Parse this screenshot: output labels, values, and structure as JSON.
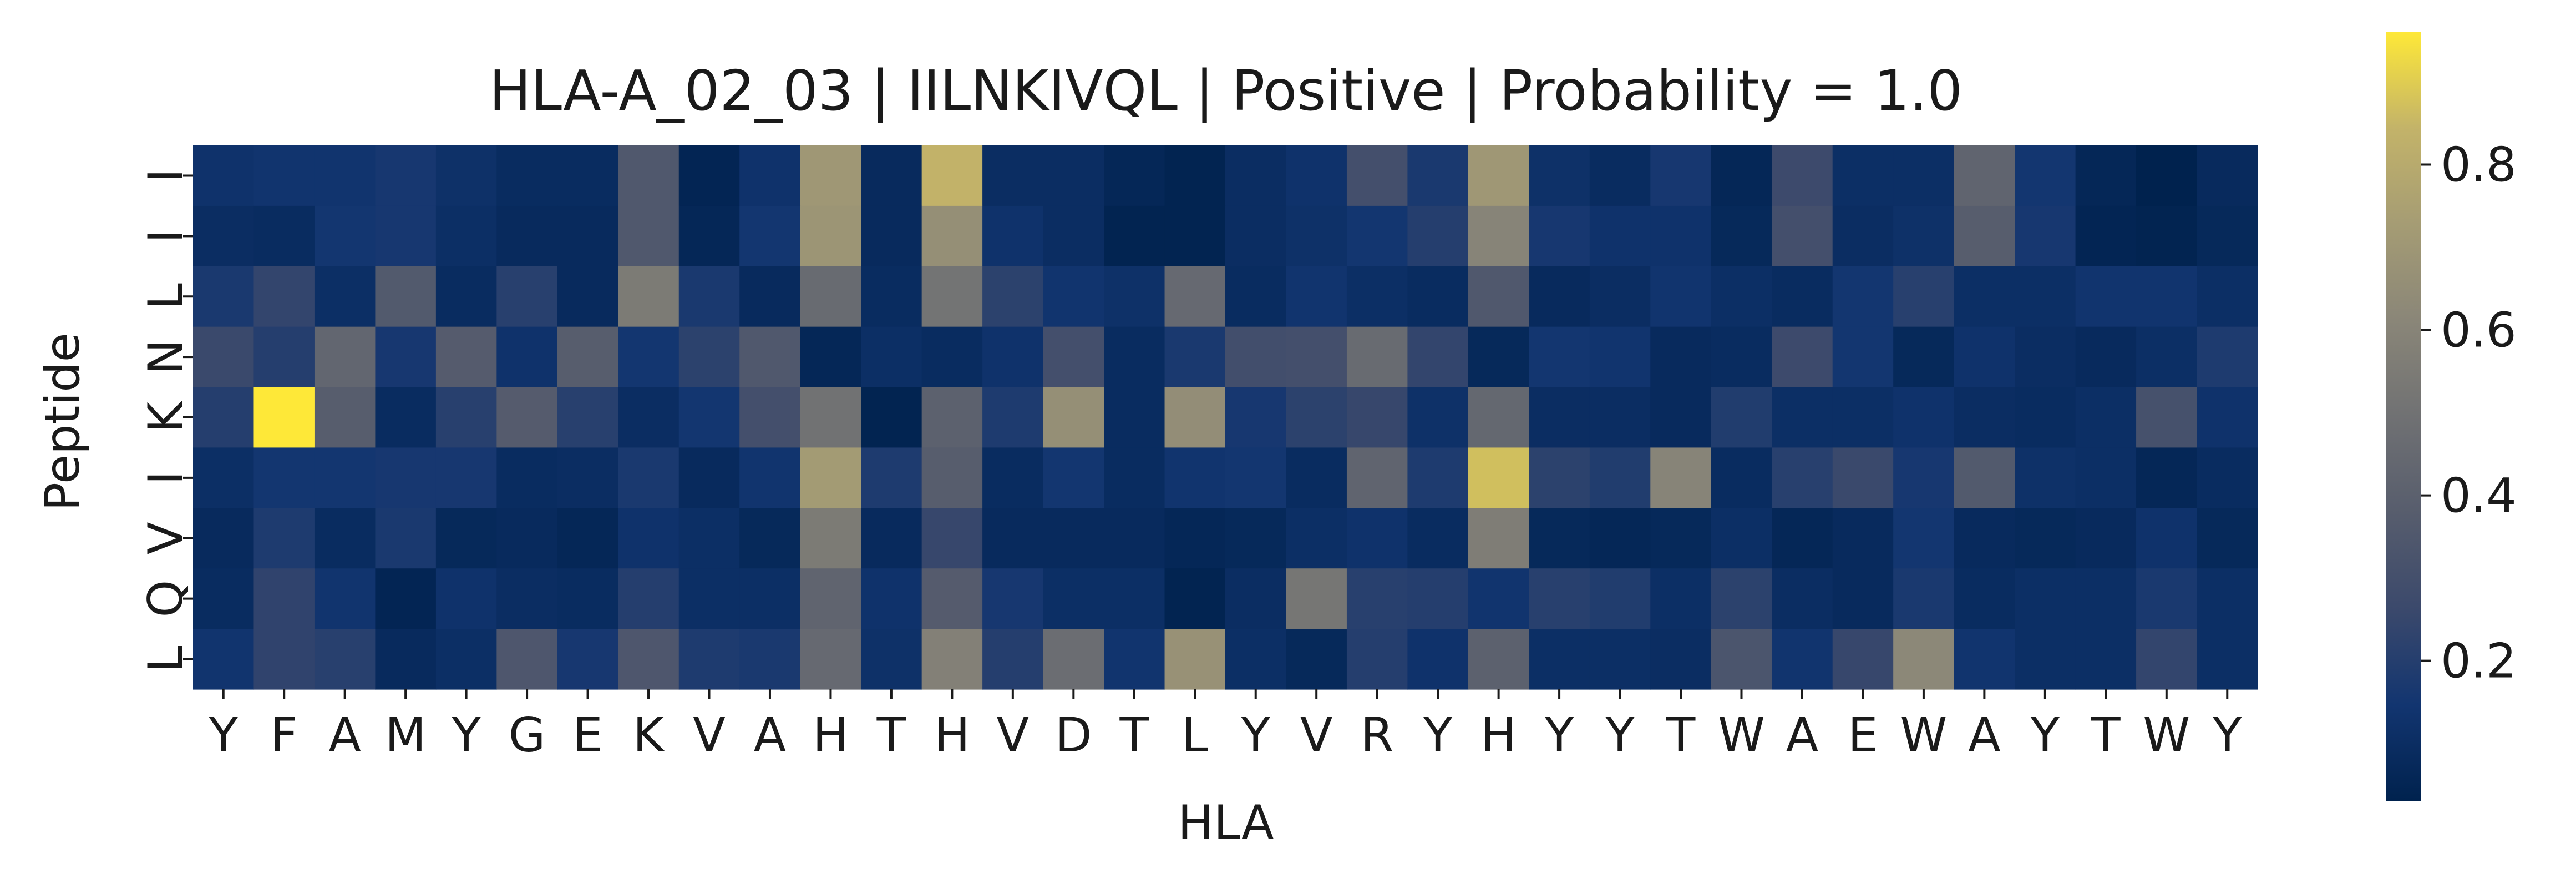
{
  "chart_data": {
    "type": "heatmap",
    "title": "HLA-A_02_03 | IILNKIVQL | Positive | Probability = 1.0",
    "xlabel": "HLA",
    "ylabel": "Peptide",
    "x_tick_labels": [
      "Y",
      "F",
      "A",
      "M",
      "Y",
      "G",
      "E",
      "K",
      "V",
      "A",
      "H",
      "T",
      "H",
      "V",
      "D",
      "T",
      "L",
      "Y",
      "V",
      "R",
      "Y",
      "H",
      "Y",
      "Y",
      "T",
      "W",
      "A",
      "E",
      "W",
      "A",
      "Y",
      "T",
      "W",
      "Y"
    ],
    "y_tick_labels": [
      "I",
      "I",
      "L",
      "N",
      "K",
      "I",
      "V",
      "Q",
      "L"
    ],
    "colormap": "cividis",
    "colorbar": {
      "range": [
        0.03,
        0.96
      ],
      "tick_values": [
        0.2,
        0.4,
        0.6,
        0.8
      ],
      "tick_labels": [
        "0.2",
        "0.4",
        "0.6",
        "0.8"
      ]
    },
    "values": [
      [
        0.13,
        0.14,
        0.14,
        0.16,
        0.12,
        0.09,
        0.09,
        0.35,
        0.05,
        0.13,
        0.7,
        0.08,
        0.84,
        0.1,
        0.1,
        0.06,
        0.04,
        0.1,
        0.13,
        0.3,
        0.17,
        0.7,
        0.12,
        0.09,
        0.16,
        0.06,
        0.27,
        0.11,
        0.11,
        0.42,
        0.15,
        0.06,
        0.03,
        0.08
      ],
      [
        0.1,
        0.09,
        0.15,
        0.16,
        0.11,
        0.08,
        0.08,
        0.35,
        0.06,
        0.15,
        0.69,
        0.08,
        0.66,
        0.13,
        0.1,
        0.04,
        0.04,
        0.1,
        0.12,
        0.15,
        0.2,
        0.6,
        0.16,
        0.13,
        0.13,
        0.07,
        0.3,
        0.1,
        0.12,
        0.38,
        0.16,
        0.05,
        0.04,
        0.07
      ],
      [
        0.17,
        0.24,
        0.11,
        0.36,
        0.09,
        0.21,
        0.08,
        0.55,
        0.17,
        0.08,
        0.46,
        0.09,
        0.51,
        0.22,
        0.14,
        0.12,
        0.45,
        0.09,
        0.14,
        0.11,
        0.09,
        0.35,
        0.08,
        0.1,
        0.14,
        0.11,
        0.09,
        0.15,
        0.21,
        0.11,
        0.11,
        0.14,
        0.14,
        0.11
      ],
      [
        0.26,
        0.2,
        0.43,
        0.16,
        0.37,
        0.13,
        0.38,
        0.15,
        0.22,
        0.35,
        0.06,
        0.11,
        0.09,
        0.13,
        0.3,
        0.09,
        0.17,
        0.29,
        0.3,
        0.46,
        0.24,
        0.07,
        0.15,
        0.14,
        0.08,
        0.09,
        0.27,
        0.15,
        0.07,
        0.13,
        0.1,
        0.08,
        0.11,
        0.18
      ],
      [
        0.2,
        0.96,
        0.38,
        0.09,
        0.21,
        0.37,
        0.21,
        0.1,
        0.15,
        0.3,
        0.5,
        0.04,
        0.4,
        0.18,
        0.66,
        0.09,
        0.65,
        0.16,
        0.22,
        0.25,
        0.12,
        0.44,
        0.1,
        0.1,
        0.08,
        0.19,
        0.11,
        0.11,
        0.13,
        0.1,
        0.09,
        0.11,
        0.31,
        0.13
      ],
      [
        0.11,
        0.15,
        0.15,
        0.16,
        0.16,
        0.09,
        0.1,
        0.17,
        0.08,
        0.14,
        0.72,
        0.18,
        0.38,
        0.09,
        0.15,
        0.09,
        0.14,
        0.15,
        0.09,
        0.42,
        0.18,
        0.87,
        0.22,
        0.19,
        0.6,
        0.09,
        0.21,
        0.26,
        0.16,
        0.36,
        0.12,
        0.11,
        0.06,
        0.09
      ],
      [
        0.08,
        0.18,
        0.09,
        0.17,
        0.07,
        0.08,
        0.06,
        0.13,
        0.11,
        0.07,
        0.55,
        0.08,
        0.25,
        0.08,
        0.08,
        0.08,
        0.06,
        0.07,
        0.11,
        0.13,
        0.09,
        0.56,
        0.07,
        0.06,
        0.07,
        0.11,
        0.06,
        0.08,
        0.15,
        0.08,
        0.07,
        0.08,
        0.13,
        0.07
      ],
      [
        0.09,
        0.23,
        0.14,
        0.05,
        0.13,
        0.1,
        0.09,
        0.2,
        0.11,
        0.11,
        0.42,
        0.13,
        0.37,
        0.16,
        0.11,
        0.11,
        0.04,
        0.1,
        0.52,
        0.21,
        0.2,
        0.14,
        0.21,
        0.19,
        0.11,
        0.22,
        0.1,
        0.08,
        0.17,
        0.09,
        0.11,
        0.11,
        0.17,
        0.11
      ],
      [
        0.14,
        0.23,
        0.21,
        0.08,
        0.11,
        0.34,
        0.16,
        0.34,
        0.18,
        0.17,
        0.45,
        0.12,
        0.58,
        0.2,
        0.47,
        0.14,
        0.67,
        0.11,
        0.07,
        0.2,
        0.13,
        0.4,
        0.11,
        0.11,
        0.1,
        0.33,
        0.14,
        0.25,
        0.62,
        0.14,
        0.11,
        0.11,
        0.24,
        0.11
      ]
    ]
  }
}
